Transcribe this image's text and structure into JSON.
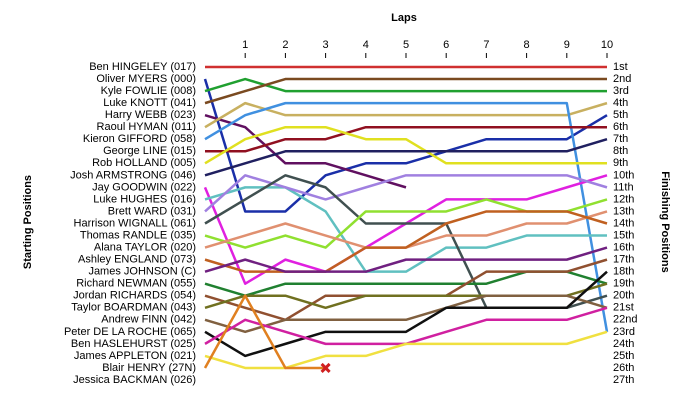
{
  "chart_data": {
    "type": "lapchart",
    "xlabel": "Laps",
    "ylabel": "Starting Positions",
    "y2label": "Finishing Positions",
    "x": [
      0,
      1,
      2,
      3,
      4,
      5,
      6,
      7,
      8,
      9,
      10
    ],
    "xlim": [
      0,
      10
    ],
    "xticks": [
      1,
      2,
      3,
      4,
      5,
      6,
      7,
      8,
      9,
      10
    ],
    "ylim": [
      1,
      27
    ],
    "y_inverted": true,
    "finishing_positions": [
      "1st",
      "2nd",
      "3rd",
      "4th",
      "5th",
      "6th",
      "7th",
      "8th",
      "9th",
      "10th",
      "11th",
      "12th",
      "13th",
      "14th",
      "15th",
      "16th",
      "17th",
      "18th",
      "19th",
      "20th",
      "21st",
      "22nd",
      "23rd",
      "24th",
      "25th",
      "26th",
      "27th"
    ],
    "series": [
      {
        "name": "Ben HINGELEY (017)",
        "color": "#d03030",
        "values": [
          1,
          1,
          1,
          1,
          1,
          1,
          1,
          1,
          1,
          1,
          1
        ]
      },
      {
        "name": "Oliver MYERS (000)",
        "color": "#1a2fa8",
        "values": [
          2,
          13,
          13,
          10,
          9,
          9,
          8,
          7,
          7,
          7,
          5
        ]
      },
      {
        "name": "Kyle FOWLIE (008)",
        "color": "#20a030",
        "values": [
          3,
          2,
          3,
          3,
          3,
          3,
          3,
          3,
          3,
          3,
          3
        ]
      },
      {
        "name": "Luke KNOTT (041)",
        "color": "#7a4a20",
        "values": [
          4,
          3,
          2,
          2,
          2,
          2,
          2,
          2,
          2,
          2,
          2
        ]
      },
      {
        "name": "Harry WEBB (023)",
        "color": "#601060",
        "values": [
          5,
          6,
          9,
          9,
          10,
          11,
          null,
          null,
          null,
          null,
          null
        ]
      },
      {
        "name": "Raoul HYMAN (011)",
        "color": "#c8b060",
        "values": [
          6,
          4,
          5,
          5,
          5,
          5,
          5,
          5,
          5,
          5,
          4
        ]
      },
      {
        "name": "Kieron GIFFORD (058)",
        "color": "#4090e0",
        "values": [
          7,
          5,
          4,
          4,
          4,
          4,
          4,
          4,
          4,
          4,
          23
        ]
      },
      {
        "name": "George LINE (015)",
        "color": "#901020",
        "values": [
          8,
          8,
          7,
          7,
          6,
          6,
          6,
          6,
          6,
          6,
          6
        ]
      },
      {
        "name": "Rob HOLLAND (005)",
        "color": "#e0e020",
        "values": [
          9,
          7,
          6,
          6,
          7,
          7,
          9,
          9,
          9,
          9,
          9
        ]
      },
      {
        "name": "Josh ARMSTRONG (046)",
        "color": "#202060",
        "values": [
          10,
          9,
          8,
          8,
          8,
          8,
          8,
          8,
          8,
          8,
          7
        ]
      },
      {
        "name": "Jay GOODWIN (022)",
        "color": "#e020e0",
        "values": [
          11,
          19,
          17,
          18,
          16,
          14,
          12,
          12,
          12,
          11,
          10
        ]
      },
      {
        "name": "Luke HUGHES (016)",
        "color": "#60c0c0",
        "values": [
          12,
          11,
          11,
          13,
          18,
          18,
          16,
          16,
          15,
          15,
          15
        ]
      },
      {
        "name": "Brett WARD (031)",
        "color": "#a080e0",
        "values": [
          13,
          10,
          11,
          12,
          11,
          10,
          10,
          10,
          10,
          10,
          11
        ]
      },
      {
        "name": "Harrison WIGNALL (061)",
        "color": "#405050",
        "values": [
          14,
          12,
          10,
          11,
          14,
          14,
          14,
          21,
          21,
          21,
          20
        ]
      },
      {
        "name": "Thomas RANDLE (035)",
        "color": "#90e030",
        "values": [
          15,
          16,
          15,
          16,
          13,
          13,
          13,
          12,
          13,
          13,
          12
        ]
      },
      {
        "name": "Alana TAYLOR (020)",
        "color": "#e09070",
        "values": [
          16,
          15,
          14,
          15,
          16,
          16,
          15,
          15,
          14,
          14,
          13
        ]
      },
      {
        "name": "Ashley ENGLAND (073)",
        "color": "#c06020",
        "values": [
          17,
          18,
          18,
          18,
          16,
          16,
          14,
          13,
          13,
          13,
          14
        ]
      },
      {
        "name": "James JOHNSON (C)",
        "color": "#702080",
        "values": [
          18,
          17,
          18,
          18,
          18,
          17,
          17,
          17,
          17,
          17,
          16
        ]
      },
      {
        "name": "Richard NEWMAN (055)",
        "color": "#208030",
        "values": [
          19,
          20,
          19,
          19,
          19,
          19,
          19,
          19,
          18,
          18,
          19
        ]
      },
      {
        "name": "Jordan RICHARDS (054)",
        "color": "#905030",
        "values": [
          20,
          21,
          22,
          20,
          20,
          20,
          20,
          18,
          18,
          18,
          17
        ]
      },
      {
        "name": "Taylor BOARDMAN (043)",
        "color": "#707020",
        "values": [
          21,
          20,
          20,
          21,
          20,
          20,
          20,
          20,
          20,
          20,
          19
        ]
      },
      {
        "name": "Andrew FINN (042)",
        "color": "#806040",
        "values": [
          22,
          23,
          22,
          22,
          22,
          22,
          21,
          20,
          20,
          20,
          21
        ]
      },
      {
        "name": "Peter DE LA ROCHE (065)",
        "color": "#101010",
        "values": [
          23,
          25,
          24,
          23,
          23,
          23,
          21,
          21,
          21,
          21,
          18
        ]
      },
      {
        "name": "Ben HASLEHURST (025)",
        "color": "#d020a0",
        "values": [
          24,
          22,
          23,
          24,
          24,
          24,
          23,
          22,
          22,
          22,
          21
        ]
      },
      {
        "name": "James APPLETON (021)",
        "color": "#f0e040",
        "values": [
          25,
          26,
          26,
          25,
          25,
          24,
          24,
          24,
          24,
          24,
          23
        ]
      },
      {
        "name": "Blair HENRY (27N)",
        "color": "#e08020",
        "retired_marker": "x",
        "values": [
          26,
          20,
          26,
          26,
          null,
          null,
          null,
          null,
          null,
          null,
          null
        ]
      },
      {
        "name": "Jessica BACKMAN (026)",
        "color": "#909090",
        "values": [
          27,
          null,
          null,
          null,
          null,
          null,
          null,
          null,
          null,
          null,
          null
        ]
      }
    ]
  }
}
